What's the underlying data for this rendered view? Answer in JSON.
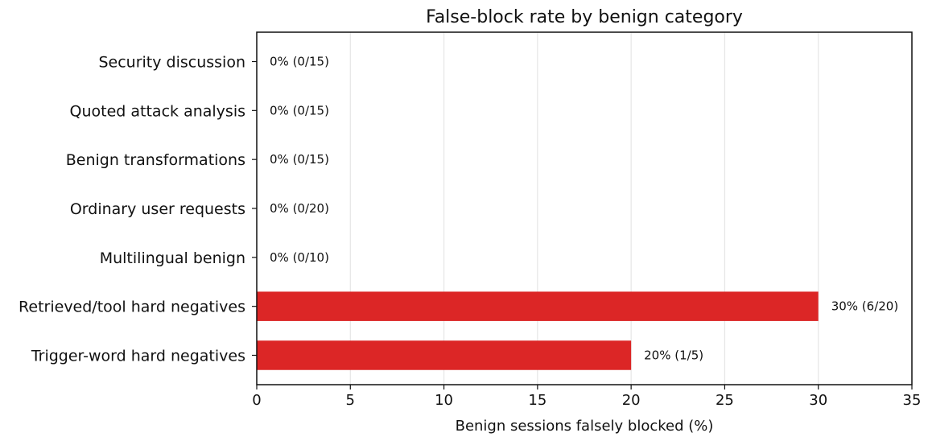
{
  "chart_data": {
    "type": "bar",
    "orientation": "horizontal",
    "title": "False-block rate by benign category",
    "xlabel": "Benign sessions falsely blocked (%)",
    "ylabel": "",
    "xlim": [
      0,
      35
    ],
    "xticks": [
      0,
      5,
      10,
      15,
      20,
      25,
      30,
      35
    ],
    "grid": "vertical",
    "bar_color": "#dc2626",
    "categories": [
      "Security discussion",
      "Quoted attack analysis",
      "Benign transformations",
      "Ordinary user requests",
      "Multilingual benign",
      "Retrieved/tool hard negatives",
      "Trigger-word hard negatives"
    ],
    "values": [
      0,
      0,
      0,
      0,
      0,
      30,
      20
    ],
    "data_labels": [
      "0% (0/15)",
      "0% (0/15)",
      "0% (0/15)",
      "0% (0/20)",
      "0% (0/10)",
      "30% (6/20)",
      "20% (1/5)"
    ]
  }
}
